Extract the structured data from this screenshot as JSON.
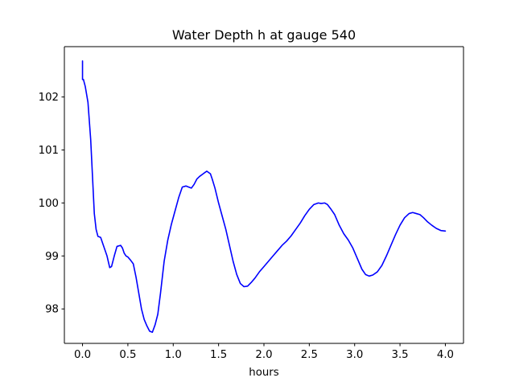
{
  "chart_data": {
    "type": "line",
    "title": "Water Depth h at gauge 540",
    "xlabel": "hours",
    "ylabel": "",
    "xlim": [
      -0.2,
      4.2
    ],
    "ylim": [
      97.35,
      102.95
    ],
    "xticks": [
      0.0,
      0.5,
      1.0,
      1.5,
      2.0,
      2.5,
      3.0,
      3.5,
      4.0
    ],
    "xtick_labels": [
      "0.0",
      "0.5",
      "1.0",
      "1.5",
      "2.0",
      "2.5",
      "3.0",
      "3.5",
      "4.0"
    ],
    "yticks": [
      98,
      99,
      100,
      101,
      102
    ],
    "ytick_labels": [
      "98",
      "99",
      "100",
      "101",
      "102"
    ],
    "grid": false,
    "series": [
      {
        "color": "#0000ff",
        "x": [
          0.0,
          0.0,
          0.01,
          0.03,
          0.06,
          0.09,
          0.11,
          0.13,
          0.15,
          0.17,
          0.2,
          0.23,
          0.27,
          0.3,
          0.32,
          0.35,
          0.38,
          0.42,
          0.44,
          0.46,
          0.48,
          0.5,
          0.53,
          0.56,
          0.59,
          0.62,
          0.65,
          0.68,
          0.71,
          0.74,
          0.77,
          0.8,
          0.83,
          0.86,
          0.9,
          0.94,
          0.98,
          1.02,
          1.06,
          1.1,
          1.14,
          1.17,
          1.2,
          1.23,
          1.26,
          1.29,
          1.33,
          1.37,
          1.41,
          1.43,
          1.46,
          1.5,
          1.54,
          1.58,
          1.62,
          1.66,
          1.7,
          1.74,
          1.78,
          1.82,
          1.86,
          1.9,
          1.95,
          2.0,
          2.05,
          2.1,
          2.15,
          2.2,
          2.25,
          2.3,
          2.35,
          2.4,
          2.45,
          2.5,
          2.55,
          2.6,
          2.63,
          2.67,
          2.7,
          2.74,
          2.78,
          2.83,
          2.88,
          2.93,
          2.98,
          3.03,
          3.08,
          3.12,
          3.16,
          3.2,
          3.25,
          3.3,
          3.35,
          3.4,
          3.45,
          3.5,
          3.55,
          3.6,
          3.64,
          3.68,
          3.72,
          3.76,
          3.8,
          3.85,
          3.9,
          3.95,
          4.0
        ],
        "y": [
          102.68,
          102.33,
          102.33,
          102.2,
          101.9,
          101.2,
          100.5,
          99.8,
          99.5,
          99.37,
          99.35,
          99.2,
          99.0,
          98.78,
          98.8,
          99.0,
          99.18,
          99.2,
          99.15,
          99.05,
          99.0,
          98.98,
          98.92,
          98.85,
          98.6,
          98.3,
          98.0,
          97.8,
          97.68,
          97.58,
          97.56,
          97.7,
          97.9,
          98.3,
          98.9,
          99.3,
          99.6,
          99.85,
          100.1,
          100.3,
          100.32,
          100.3,
          100.28,
          100.35,
          100.45,
          100.5,
          100.55,
          100.6,
          100.55,
          100.45,
          100.28,
          100.0,
          99.75,
          99.5,
          99.2,
          98.9,
          98.65,
          98.48,
          98.42,
          98.43,
          98.5,
          98.58,
          98.7,
          98.8,
          98.9,
          99.0,
          99.1,
          99.2,
          99.28,
          99.38,
          99.5,
          99.62,
          99.76,
          99.88,
          99.97,
          100.0,
          99.99,
          100.0,
          99.97,
          99.88,
          99.78,
          99.58,
          99.42,
          99.3,
          99.15,
          98.95,
          98.75,
          98.65,
          98.62,
          98.64,
          98.7,
          98.82,
          99.0,
          99.2,
          99.4,
          99.58,
          99.72,
          99.8,
          99.82,
          99.8,
          99.78,
          99.72,
          99.65,
          99.58,
          99.52,
          99.48,
          99.47
        ]
      }
    ]
  }
}
